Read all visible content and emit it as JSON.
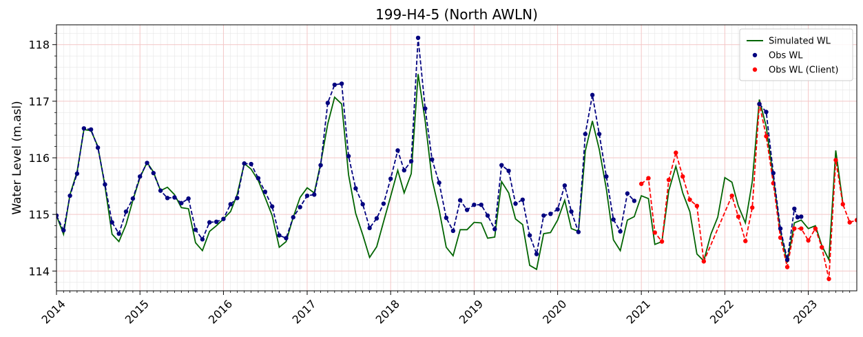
{
  "chart_data": {
    "type": "line",
    "title": "199-H4-5 (North AWLN)",
    "xlabel": "",
    "ylabel": "Water Level (m.asl)",
    "xlim": [
      "2014-01-01",
      "2023-08-01"
    ],
    "ylim": [
      113.65,
      118.35
    ],
    "x_ticks": [
      "2014",
      "2015",
      "2016",
      "2017",
      "2018",
      "2019",
      "2020",
      "2021",
      "2022",
      "2023"
    ],
    "y_ticks": [
      114,
      115,
      116,
      117,
      118
    ],
    "grid": true,
    "minor_grid": true,
    "legend_position": "top-right",
    "series": [
      {
        "name": "Simulated WL",
        "kind": "line",
        "color": "#006400",
        "dash": "solid",
        "points": [
          [
            "2014-01-01",
            114.98
          ],
          [
            "2014-02-01",
            114.65
          ],
          [
            "2014-03-01",
            115.35
          ],
          [
            "2014-04-01",
            115.75
          ],
          [
            "2014-05-01",
            116.5
          ],
          [
            "2014-06-01",
            116.48
          ],
          [
            "2014-07-01",
            116.2
          ],
          [
            "2014-08-01",
            115.5
          ],
          [
            "2014-09-01",
            114.65
          ],
          [
            "2014-10-01",
            114.52
          ],
          [
            "2014-11-01",
            114.82
          ],
          [
            "2014-12-01",
            115.25
          ],
          [
            "2015-01-01",
            115.65
          ],
          [
            "2015-02-01",
            115.92
          ],
          [
            "2015-03-01",
            115.75
          ],
          [
            "2015-04-01",
            115.42
          ],
          [
            "2015-05-01",
            115.48
          ],
          [
            "2015-06-01",
            115.35
          ],
          [
            "2015-07-01",
            115.12
          ],
          [
            "2015-08-01",
            115.1
          ],
          [
            "2015-09-01",
            114.5
          ],
          [
            "2015-10-01",
            114.36
          ],
          [
            "2015-11-01",
            114.7
          ],
          [
            "2015-12-01",
            114.8
          ],
          [
            "2016-01-01",
            114.92
          ],
          [
            "2016-02-01",
            115.05
          ],
          [
            "2016-03-01",
            115.35
          ],
          [
            "2016-04-01",
            115.9
          ],
          [
            "2016-05-01",
            115.8
          ],
          [
            "2016-06-01",
            115.6
          ],
          [
            "2016-07-01",
            115.3
          ],
          [
            "2016-08-01",
            114.98
          ],
          [
            "2016-09-01",
            114.42
          ],
          [
            "2016-10-01",
            114.52
          ],
          [
            "2016-11-01",
            114.95
          ],
          [
            "2016-12-01",
            115.3
          ],
          [
            "2017-01-01",
            115.47
          ],
          [
            "2017-02-01",
            115.38
          ],
          [
            "2017-03-01",
            115.9
          ],
          [
            "2017-04-01",
            116.6
          ],
          [
            "2017-05-01",
            117.07
          ],
          [
            "2017-06-01",
            116.95
          ],
          [
            "2017-07-01",
            115.7
          ],
          [
            "2017-08-01",
            115.02
          ],
          [
            "2017-09-01",
            114.64
          ],
          [
            "2017-10-01",
            114.24
          ],
          [
            "2017-11-01",
            114.43
          ],
          [
            "2017-12-01",
            114.87
          ],
          [
            "2018-01-01",
            115.32
          ],
          [
            "2018-02-01",
            115.78
          ],
          [
            "2018-03-01",
            115.38
          ],
          [
            "2018-04-01",
            115.72
          ],
          [
            "2018-05-01",
            117.48
          ],
          [
            "2018-06-01",
            116.65
          ],
          [
            "2018-07-01",
            115.62
          ],
          [
            "2018-08-01",
            115.08
          ],
          [
            "2018-09-01",
            114.42
          ],
          [
            "2018-10-01",
            114.27
          ],
          [
            "2018-11-01",
            114.73
          ],
          [
            "2018-12-01",
            114.73
          ],
          [
            "2019-01-01",
            114.86
          ],
          [
            "2019-02-01",
            114.85
          ],
          [
            "2019-03-01",
            114.58
          ],
          [
            "2019-04-01",
            114.6
          ],
          [
            "2019-05-01",
            115.58
          ],
          [
            "2019-06-01",
            115.38
          ],
          [
            "2019-07-01",
            114.92
          ],
          [
            "2019-08-01",
            114.82
          ],
          [
            "2019-09-01",
            114.1
          ],
          [
            "2019-10-01",
            114.03
          ],
          [
            "2019-11-01",
            114.66
          ],
          [
            "2019-12-01",
            114.68
          ],
          [
            "2020-01-01",
            114.9
          ],
          [
            "2020-02-01",
            115.25
          ],
          [
            "2020-03-01",
            114.75
          ],
          [
            "2020-04-01",
            114.7
          ],
          [
            "2020-05-01",
            116.12
          ],
          [
            "2020-06-01",
            116.65
          ],
          [
            "2020-07-01",
            116.15
          ],
          [
            "2020-08-01",
            115.45
          ],
          [
            "2020-09-01",
            114.55
          ],
          [
            "2020-10-01",
            114.36
          ],
          [
            "2020-11-01",
            114.9
          ],
          [
            "2020-12-01",
            114.96
          ],
          [
            "2021-01-01",
            115.33
          ],
          [
            "2021-02-01",
            115.28
          ],
          [
            "2021-03-01",
            114.47
          ],
          [
            "2021-04-01",
            114.52
          ],
          [
            "2021-05-01",
            115.42
          ],
          [
            "2021-06-01",
            115.85
          ],
          [
            "2021-07-01",
            115.38
          ],
          [
            "2021-08-01",
            115.05
          ],
          [
            "2021-09-01",
            114.3
          ],
          [
            "2021-10-01",
            114.18
          ],
          [
            "2021-11-01",
            114.65
          ],
          [
            "2021-12-01",
            114.95
          ],
          [
            "2022-01-01",
            115.65
          ],
          [
            "2022-02-01",
            115.57
          ],
          [
            "2022-03-01",
            115.15
          ],
          [
            "2022-04-01",
            114.85
          ],
          [
            "2022-05-01",
            115.58
          ],
          [
            "2022-06-01",
            117.03
          ],
          [
            "2022-07-01",
            116.55
          ],
          [
            "2022-08-01",
            115.65
          ],
          [
            "2022-09-01",
            114.7
          ],
          [
            "2022-10-01",
            114.15
          ],
          [
            "2022-11-01",
            114.85
          ],
          [
            "2022-12-01",
            114.9
          ],
          [
            "2023-01-01",
            114.75
          ],
          [
            "2023-02-01",
            114.8
          ],
          [
            "2023-03-01",
            114.45
          ],
          [
            "2023-04-01",
            114.2
          ],
          [
            "2023-05-01",
            116.13
          ],
          [
            "2023-06-01",
            115.2
          ]
        ]
      },
      {
        "name": "Obs WL",
        "kind": "dashed-markers",
        "color": "#00007f",
        "dash": "dashed",
        "points": [
          [
            "2014-01-01",
            114.98
          ],
          [
            "2014-02-01",
            114.72
          ],
          [
            "2014-03-01",
            115.33
          ],
          [
            "2014-04-01",
            115.72
          ],
          [
            "2014-05-01",
            116.52
          ],
          [
            "2014-06-01",
            116.5
          ],
          [
            "2014-07-01",
            116.18
          ],
          [
            "2014-08-01",
            115.53
          ],
          [
            "2014-09-01",
            114.86
          ],
          [
            "2014-10-01",
            114.66
          ],
          [
            "2014-11-01",
            115.05
          ],
          [
            "2014-12-01",
            115.28
          ],
          [
            "2015-01-01",
            115.67
          ],
          [
            "2015-02-01",
            115.91
          ],
          [
            "2015-03-01",
            115.73
          ],
          [
            "2015-04-01",
            115.42
          ],
          [
            "2015-05-01",
            115.29
          ],
          [
            "2015-06-01",
            115.3
          ],
          [
            "2015-07-01",
            115.2
          ],
          [
            "2015-08-01",
            115.28
          ],
          [
            "2015-09-01",
            114.73
          ],
          [
            "2015-10-01",
            114.56
          ],
          [
            "2015-11-01",
            114.86
          ],
          [
            "2015-12-01",
            114.87
          ],
          [
            "2016-01-01",
            114.92
          ],
          [
            "2016-02-01",
            115.18
          ],
          [
            "2016-03-01",
            115.29
          ],
          [
            "2016-04-01",
            115.9
          ],
          [
            "2016-05-01",
            115.89
          ],
          [
            "2016-06-01",
            115.64
          ],
          [
            "2016-07-01",
            115.4
          ],
          [
            "2016-08-01",
            115.14
          ],
          [
            "2016-09-01",
            114.63
          ],
          [
            "2016-10-01",
            114.58
          ],
          [
            "2016-11-01",
            114.95
          ],
          [
            "2016-12-01",
            115.13
          ],
          [
            "2017-01-01",
            115.33
          ],
          [
            "2017-02-01",
            115.35
          ],
          [
            "2017-03-01",
            115.87
          ],
          [
            "2017-04-01",
            116.97
          ],
          [
            "2017-05-01",
            117.29
          ],
          [
            "2017-06-01",
            117.31
          ],
          [
            "2017-07-01",
            116.03
          ],
          [
            "2017-08-01",
            115.46
          ],
          [
            "2017-09-01",
            115.18
          ],
          [
            "2017-10-01",
            114.76
          ],
          [
            "2017-11-01",
            114.93
          ],
          [
            "2017-12-01",
            115.19
          ],
          [
            "2018-01-01",
            115.63
          ],
          [
            "2018-02-01",
            116.13
          ],
          [
            "2018-03-01",
            115.78
          ],
          [
            "2018-04-01",
            115.94
          ],
          [
            "2018-05-01",
            118.12
          ],
          [
            "2018-06-01",
            116.87
          ],
          [
            "2018-07-01",
            115.97
          ],
          [
            "2018-08-01",
            115.56
          ],
          [
            "2018-09-01",
            114.94
          ],
          [
            "2018-10-01",
            114.71
          ],
          [
            "2018-11-01",
            115.25
          ],
          [
            "2018-12-01",
            115.08
          ],
          [
            "2019-01-01",
            115.17
          ],
          [
            "2019-02-01",
            115.17
          ],
          [
            "2019-03-01",
            114.98
          ],
          [
            "2019-04-01",
            114.74
          ],
          [
            "2019-05-01",
            115.87
          ],
          [
            "2019-06-01",
            115.77
          ],
          [
            "2019-07-01",
            115.19
          ],
          [
            "2019-08-01",
            115.26
          ],
          [
            "2019-09-01",
            114.63
          ],
          [
            "2019-10-01",
            114.3
          ],
          [
            "2019-11-01",
            114.98
          ],
          [
            "2019-12-01",
            115.01
          ],
          [
            "2020-01-01",
            115.09
          ],
          [
            "2020-02-01",
            115.51
          ],
          [
            "2020-03-01",
            115.05
          ],
          [
            "2020-04-01",
            114.69
          ],
          [
            "2020-05-01",
            116.42
          ],
          [
            "2020-06-01",
            117.11
          ],
          [
            "2020-07-01",
            116.42
          ],
          [
            "2020-08-01",
            115.67
          ],
          [
            "2020-09-01",
            114.91
          ],
          [
            "2020-10-01",
            114.7
          ],
          [
            "2020-11-01",
            115.37
          ],
          [
            "2020-12-01",
            115.24
          ]
        ]
      },
      {
        "name": "Obs WL (Client)",
        "kind": "dashed-markers",
        "color": "#ff0000",
        "dash": "dashed",
        "points": [
          [
            "2021-01-01",
            115.54
          ],
          [
            "2021-02-01",
            115.64
          ],
          [
            "2021-03-01",
            114.68
          ],
          [
            "2021-04-01",
            114.52
          ],
          [
            "2021-05-01",
            115.61
          ],
          [
            "2021-06-01",
            116.09
          ],
          [
            "2021-07-01",
            115.67
          ],
          [
            "2021-08-01",
            115.26
          ],
          [
            "2021-09-01",
            115.15
          ],
          [
            "2021-10-01",
            114.17
          ],
          [
            "2022-02-01",
            115.33
          ],
          [
            "2022-03-01",
            114.96
          ],
          [
            "2022-04-01",
            114.53
          ],
          [
            "2022-05-01",
            115.12
          ],
          [
            "2022-06-01",
            116.95
          ],
          [
            "2022-07-01",
            116.38
          ],
          [
            "2022-08-01",
            115.55
          ],
          [
            "2022-09-01",
            114.59
          ],
          [
            "2022-10-01",
            114.07
          ],
          [
            "2022-11-01",
            114.75
          ],
          [
            "2022-12-01",
            114.75
          ],
          [
            "2023-01-01",
            114.54
          ],
          [
            "2023-02-01",
            114.75
          ],
          [
            "2023-03-01",
            114.42
          ],
          [
            "2023-04-01",
            113.86
          ],
          [
            "2023-05-01",
            115.96
          ],
          [
            "2023-06-01",
            115.18
          ],
          [
            "2023-07-01",
            114.86
          ],
          [
            "2023-08-01",
            114.9
          ]
        ]
      },
      {
        "name": "",
        "kind": "dashed-markers",
        "color": "#00007f",
        "dash": "dashed",
        "points": [
          [
            "2022-06-01",
            116.95
          ],
          [
            "2022-07-01",
            116.81
          ],
          [
            "2022-08-01",
            115.73
          ],
          [
            "2022-09-01",
            114.75
          ],
          [
            "2022-10-01",
            114.2
          ],
          [
            "2022-11-01",
            115.1
          ],
          [
            "2022-11-15",
            114.95
          ],
          [
            "2022-12-01",
            114.96
          ]
        ]
      }
    ]
  }
}
